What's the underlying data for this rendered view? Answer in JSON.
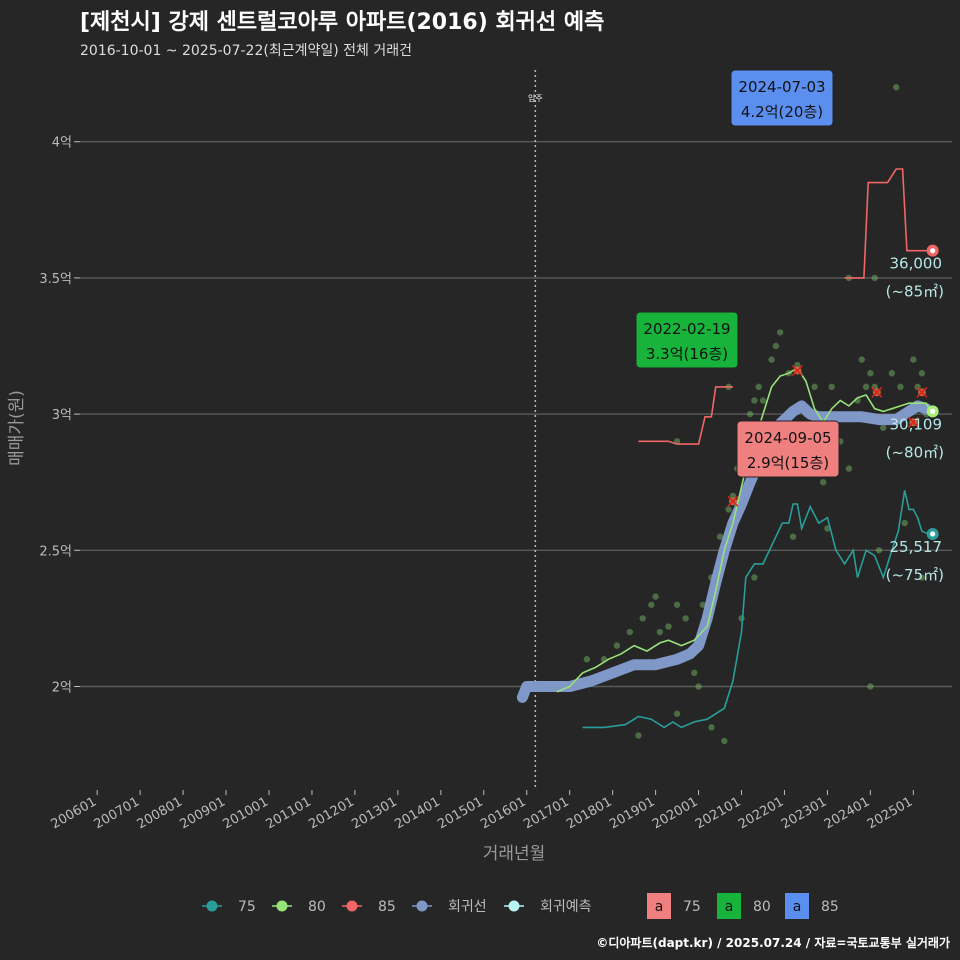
{
  "title": "[제천시] 강제 센트럴코아루 아파트(2016) 회귀선 예측",
  "subtitle": "2016-10-01 ~ 2025-07-22(최근계약일) 전체 거래건",
  "caption": "©디아파트(dapt.kr) / 2025.07.24 / 자료=국토교통부 실거래가",
  "chart_data": {
    "type": "line",
    "xlabel": "거래년월",
    "ylabel": "매매가(원)",
    "x_ticks": [
      "200601",
      "200701",
      "200801",
      "200901",
      "201001",
      "201101",
      "201201",
      "201301",
      "201401",
      "201501",
      "201601",
      "201701",
      "201801",
      "201901",
      "202001",
      "202101",
      "202201",
      "202301",
      "202401",
      "202501"
    ],
    "y_ticks": [
      {
        "value": 2.0,
        "label": "2억"
      },
      {
        "value": 2.5,
        "label": "2.5억"
      },
      {
        "value": 3.0,
        "label": "3억"
      },
      {
        "value": 3.5,
        "label": "3.5억"
      },
      {
        "value": 4.0,
        "label": "4억"
      }
    ],
    "xlim": [
      2005.6,
      2025.9
    ],
    "ylim": [
      1.62,
      4.3
    ],
    "move_in": {
      "year": 2016.2,
      "label": "입주"
    },
    "series": [
      {
        "name": "75",
        "color": "#2a9d9a",
        "points": [
          [
            2017.3,
            1.85
          ],
          [
            2017.8,
            1.85
          ],
          [
            2018.3,
            1.86
          ],
          [
            2018.6,
            1.89
          ],
          [
            2018.9,
            1.88
          ],
          [
            2019.2,
            1.85
          ],
          [
            2019.4,
            1.87
          ],
          [
            2019.6,
            1.85
          ],
          [
            2019.9,
            1.87
          ],
          [
            2020.2,
            1.88
          ],
          [
            2020.6,
            1.92
          ],
          [
            2020.8,
            2.02
          ],
          [
            2021.0,
            2.2
          ],
          [
            2021.1,
            2.4
          ],
          [
            2021.3,
            2.45
          ],
          [
            2021.5,
            2.45
          ],
          [
            2021.8,
            2.55
          ],
          [
            2021.95,
            2.6
          ],
          [
            2022.1,
            2.6
          ],
          [
            2022.2,
            2.67
          ],
          [
            2022.3,
            2.67
          ],
          [
            2022.4,
            2.58
          ],
          [
            2022.6,
            2.66
          ],
          [
            2022.8,
            2.6
          ],
          [
            2023.0,
            2.62
          ],
          [
            2023.2,
            2.5
          ],
          [
            2023.4,
            2.45
          ],
          [
            2023.6,
            2.5
          ],
          [
            2023.7,
            2.4
          ],
          [
            2023.9,
            2.5
          ],
          [
            2024.1,
            2.48
          ],
          [
            2024.3,
            2.4
          ],
          [
            2024.5,
            2.5
          ],
          [
            2024.65,
            2.57
          ],
          [
            2024.8,
            2.72
          ],
          [
            2024.9,
            2.65
          ],
          [
            2025.0,
            2.65
          ],
          [
            2025.1,
            2.62
          ],
          [
            2025.2,
            2.57
          ],
          [
            2025.35,
            2.56
          ]
        ]
      },
      {
        "name": "80",
        "color": "#98e27a",
        "points": [
          [
            2016.7,
            1.98
          ],
          [
            2017.0,
            2.0
          ],
          [
            2017.3,
            2.05
          ],
          [
            2017.6,
            2.07
          ],
          [
            2017.9,
            2.1
          ],
          [
            2018.2,
            2.12
          ],
          [
            2018.5,
            2.15
          ],
          [
            2018.8,
            2.13
          ],
          [
            2019.1,
            2.16
          ],
          [
            2019.3,
            2.17
          ],
          [
            2019.6,
            2.15
          ],
          [
            2019.9,
            2.17
          ],
          [
            2020.2,
            2.22
          ],
          [
            2020.4,
            2.35
          ],
          [
            2020.6,
            2.5
          ],
          [
            2020.8,
            2.6
          ],
          [
            2020.95,
            2.7
          ],
          [
            2021.1,
            2.8
          ],
          [
            2021.3,
            2.9
          ],
          [
            2021.5,
            3.0
          ],
          [
            2021.7,
            3.1
          ],
          [
            2021.9,
            3.14
          ],
          [
            2022.1,
            3.15
          ],
          [
            2022.3,
            3.17
          ],
          [
            2022.5,
            3.12
          ],
          [
            2022.7,
            3.02
          ],
          [
            2022.9,
            2.97
          ],
          [
            2023.1,
            3.02
          ],
          [
            2023.3,
            3.05
          ],
          [
            2023.5,
            3.03
          ],
          [
            2023.7,
            3.06
          ],
          [
            2023.9,
            3.07
          ],
          [
            2024.1,
            3.02
          ],
          [
            2024.3,
            3.01
          ],
          [
            2024.5,
            3.02
          ],
          [
            2024.7,
            3.03
          ],
          [
            2024.9,
            3.04
          ],
          [
            2025.1,
            3.04
          ],
          [
            2025.3,
            3.04
          ],
          [
            2025.4,
            3.01
          ]
        ]
      },
      {
        "name": "85",
        "color": "#f06666",
        "segments": [
          [
            [
              2018.6,
              2.9
            ],
            [
              2019.3,
              2.9
            ],
            [
              2019.5,
              2.89
            ],
            [
              2019.8,
              2.89
            ],
            [
              2020.0,
              2.89
            ],
            [
              2020.15,
              2.99
            ],
            [
              2020.3,
              2.99
            ],
            [
              2020.4,
              3.1
            ],
            [
              2020.8,
              3.1
            ]
          ],
          [
            [
              2023.4,
              3.5
            ],
            [
              2023.7,
              3.5
            ],
            [
              2023.85,
              3.5
            ],
            [
              2023.95,
              3.85
            ],
            [
              2024.4,
              3.85
            ],
            [
              2024.6,
              3.9
            ],
            [
              2024.75,
              3.9
            ],
            [
              2024.85,
              3.6
            ],
            [
              2025.1,
              3.6
            ],
            [
              2025.4,
              3.6
            ]
          ]
        ]
      },
      {
        "name": "회귀선",
        "color": "#7f98c7",
        "points": [
          [
            2015.9,
            1.96
          ],
          [
            2016.0,
            2.0
          ],
          [
            2016.5,
            2.0
          ],
          [
            2017.0,
            2.0
          ],
          [
            2017.5,
            2.02
          ],
          [
            2018.0,
            2.05
          ],
          [
            2018.5,
            2.08
          ],
          [
            2019.0,
            2.08
          ],
          [
            2019.5,
            2.1
          ],
          [
            2019.8,
            2.12
          ],
          [
            2020.0,
            2.15
          ],
          [
            2020.2,
            2.25
          ],
          [
            2020.4,
            2.38
          ],
          [
            2020.6,
            2.5
          ],
          [
            2020.8,
            2.6
          ],
          [
            2021.0,
            2.67
          ],
          [
            2021.2,
            2.75
          ],
          [
            2021.4,
            2.82
          ],
          [
            2021.6,
            2.88
          ],
          [
            2021.8,
            2.95
          ],
          [
            2022.0,
            2.98
          ],
          [
            2022.2,
            3.01
          ],
          [
            2022.4,
            3.03
          ],
          [
            2022.6,
            3.0
          ],
          [
            2022.8,
            2.99
          ],
          [
            2023.0,
            2.99
          ],
          [
            2023.4,
            2.99
          ],
          [
            2023.8,
            2.99
          ],
          [
            2024.2,
            2.98
          ],
          [
            2024.6,
            2.98
          ],
          [
            2024.9,
            3.01
          ],
          [
            2025.1,
            3.03
          ],
          [
            2025.3,
            3.02
          ]
        ]
      }
    ],
    "scatter_color": "#7cc36a",
    "scatter": [
      [
        2017.0,
        2.0
      ],
      [
        2017.4,
        2.1
      ],
      [
        2017.8,
        2.1
      ],
      [
        2018.1,
        2.15
      ],
      [
        2018.4,
        2.2
      ],
      [
        2018.7,
        2.25
      ],
      [
        2018.9,
        2.3
      ],
      [
        2019.0,
        2.33
      ],
      [
        2019.1,
        2.2
      ],
      [
        2019.3,
        2.22
      ],
      [
        2019.5,
        2.3
      ],
      [
        2019.7,
        2.25
      ],
      [
        2019.9,
        2.05
      ],
      [
        2020.0,
        2.0
      ],
      [
        2020.1,
        2.3
      ],
      [
        2020.3,
        2.4
      ],
      [
        2020.5,
        2.55
      ],
      [
        2020.7,
        2.65
      ],
      [
        2020.8,
        2.7
      ],
      [
        2020.9,
        2.8
      ],
      [
        2021.0,
        2.9
      ],
      [
        2021.1,
        2.95
      ],
      [
        2021.2,
        3.0
      ],
      [
        2021.3,
        3.05
      ],
      [
        2021.4,
        3.1
      ],
      [
        2021.5,
        3.05
      ],
      [
        2021.6,
        2.95
      ],
      [
        2021.7,
        3.2
      ],
      [
        2021.8,
        3.25
      ],
      [
        2021.9,
        3.3
      ],
      [
        2022.1,
        3.15
      ],
      [
        2022.3,
        3.18
      ],
      [
        2022.5,
        3.0
      ],
      [
        2022.7,
        3.1
      ],
      [
        2022.9,
        2.75
      ],
      [
        2023.1,
        3.1
      ],
      [
        2023.3,
        2.9
      ],
      [
        2023.5,
        2.8
      ],
      [
        2023.7,
        3.05
      ],
      [
        2023.8,
        3.2
      ],
      [
        2023.9,
        3.1
      ],
      [
        2024.0,
        3.15
      ],
      [
        2024.1,
        3.1
      ],
      [
        2024.3,
        2.95
      ],
      [
        2024.5,
        3.15
      ],
      [
        2024.7,
        3.1
      ],
      [
        2024.9,
        3.0
      ],
      [
        2025.0,
        3.2
      ],
      [
        2025.1,
        3.1
      ],
      [
        2025.2,
        3.15
      ],
      [
        2025.3,
        3.0
      ],
      [
        2018.6,
        1.82
      ],
      [
        2019.5,
        1.9
      ],
      [
        2020.3,
        1.85
      ],
      [
        2020.6,
        1.8
      ],
      [
        2021.0,
        2.25
      ],
      [
        2021.3,
        2.4
      ],
      [
        2022.2,
        2.55
      ],
      [
        2023.0,
        2.58
      ],
      [
        2024.2,
        2.5
      ],
      [
        2024.8,
        2.6
      ],
      [
        2025.2,
        2.4
      ],
      [
        2024.0,
        2.0
      ],
      [
        2023.5,
        3.5
      ],
      [
        2024.1,
        3.5
      ],
      [
        2019.5,
        2.9
      ],
      [
        2020.7,
        3.1
      ],
      [
        2024.6,
        4.2
      ]
    ],
    "highlights": [
      [
        2020.8,
        2.68
      ],
      [
        2022.3,
        3.16
      ],
      [
        2024.15,
        3.08
      ],
      [
        2025.0,
        2.97
      ],
      [
        2025.2,
        3.08
      ]
    ],
    "end_labels": [
      {
        "series": "85",
        "y": 3.6,
        "value": "36,000",
        "area": "(~85㎡)",
        "color": "#f06666"
      },
      {
        "series": "80",
        "y": 3.01,
        "value": "30,109",
        "area": "(~80㎡)",
        "color": "#a6f07a"
      },
      {
        "series": "75",
        "y": 2.56,
        "value": "25,517",
        "area": "(~75㎡)",
        "color": "#2a9d9a"
      }
    ],
    "end_label_text_color": "#b7e6e6",
    "annotations": [
      {
        "date": "2024-07-03",
        "price": "4.2억(20층)",
        "color": "#5b8fef",
        "series": "85"
      },
      {
        "date": "2022-02-19",
        "price": "3.3억(16층)",
        "color": "#18b33a",
        "series": "80"
      },
      {
        "date": "2024-09-05",
        "price": "2.9억(15층)",
        "color": "#f08080",
        "series": "75"
      }
    ],
    "legend": {
      "lines": [
        {
          "label": "75",
          "color": "#2a9d9a"
        },
        {
          "label": "80",
          "color": "#98e27a"
        },
        {
          "label": "85",
          "color": "#f06666"
        },
        {
          "label": "회귀선",
          "color": "#7f98c7"
        },
        {
          "label": "회귀예측",
          "color": "#b7f5f5"
        }
      ],
      "boxes": [
        {
          "letter": "a",
          "label": "75",
          "color": "#f08080"
        },
        {
          "letter": "a",
          "label": "80",
          "color": "#18b33a"
        },
        {
          "letter": "a",
          "label": "85",
          "color": "#5b8fef"
        }
      ]
    }
  }
}
